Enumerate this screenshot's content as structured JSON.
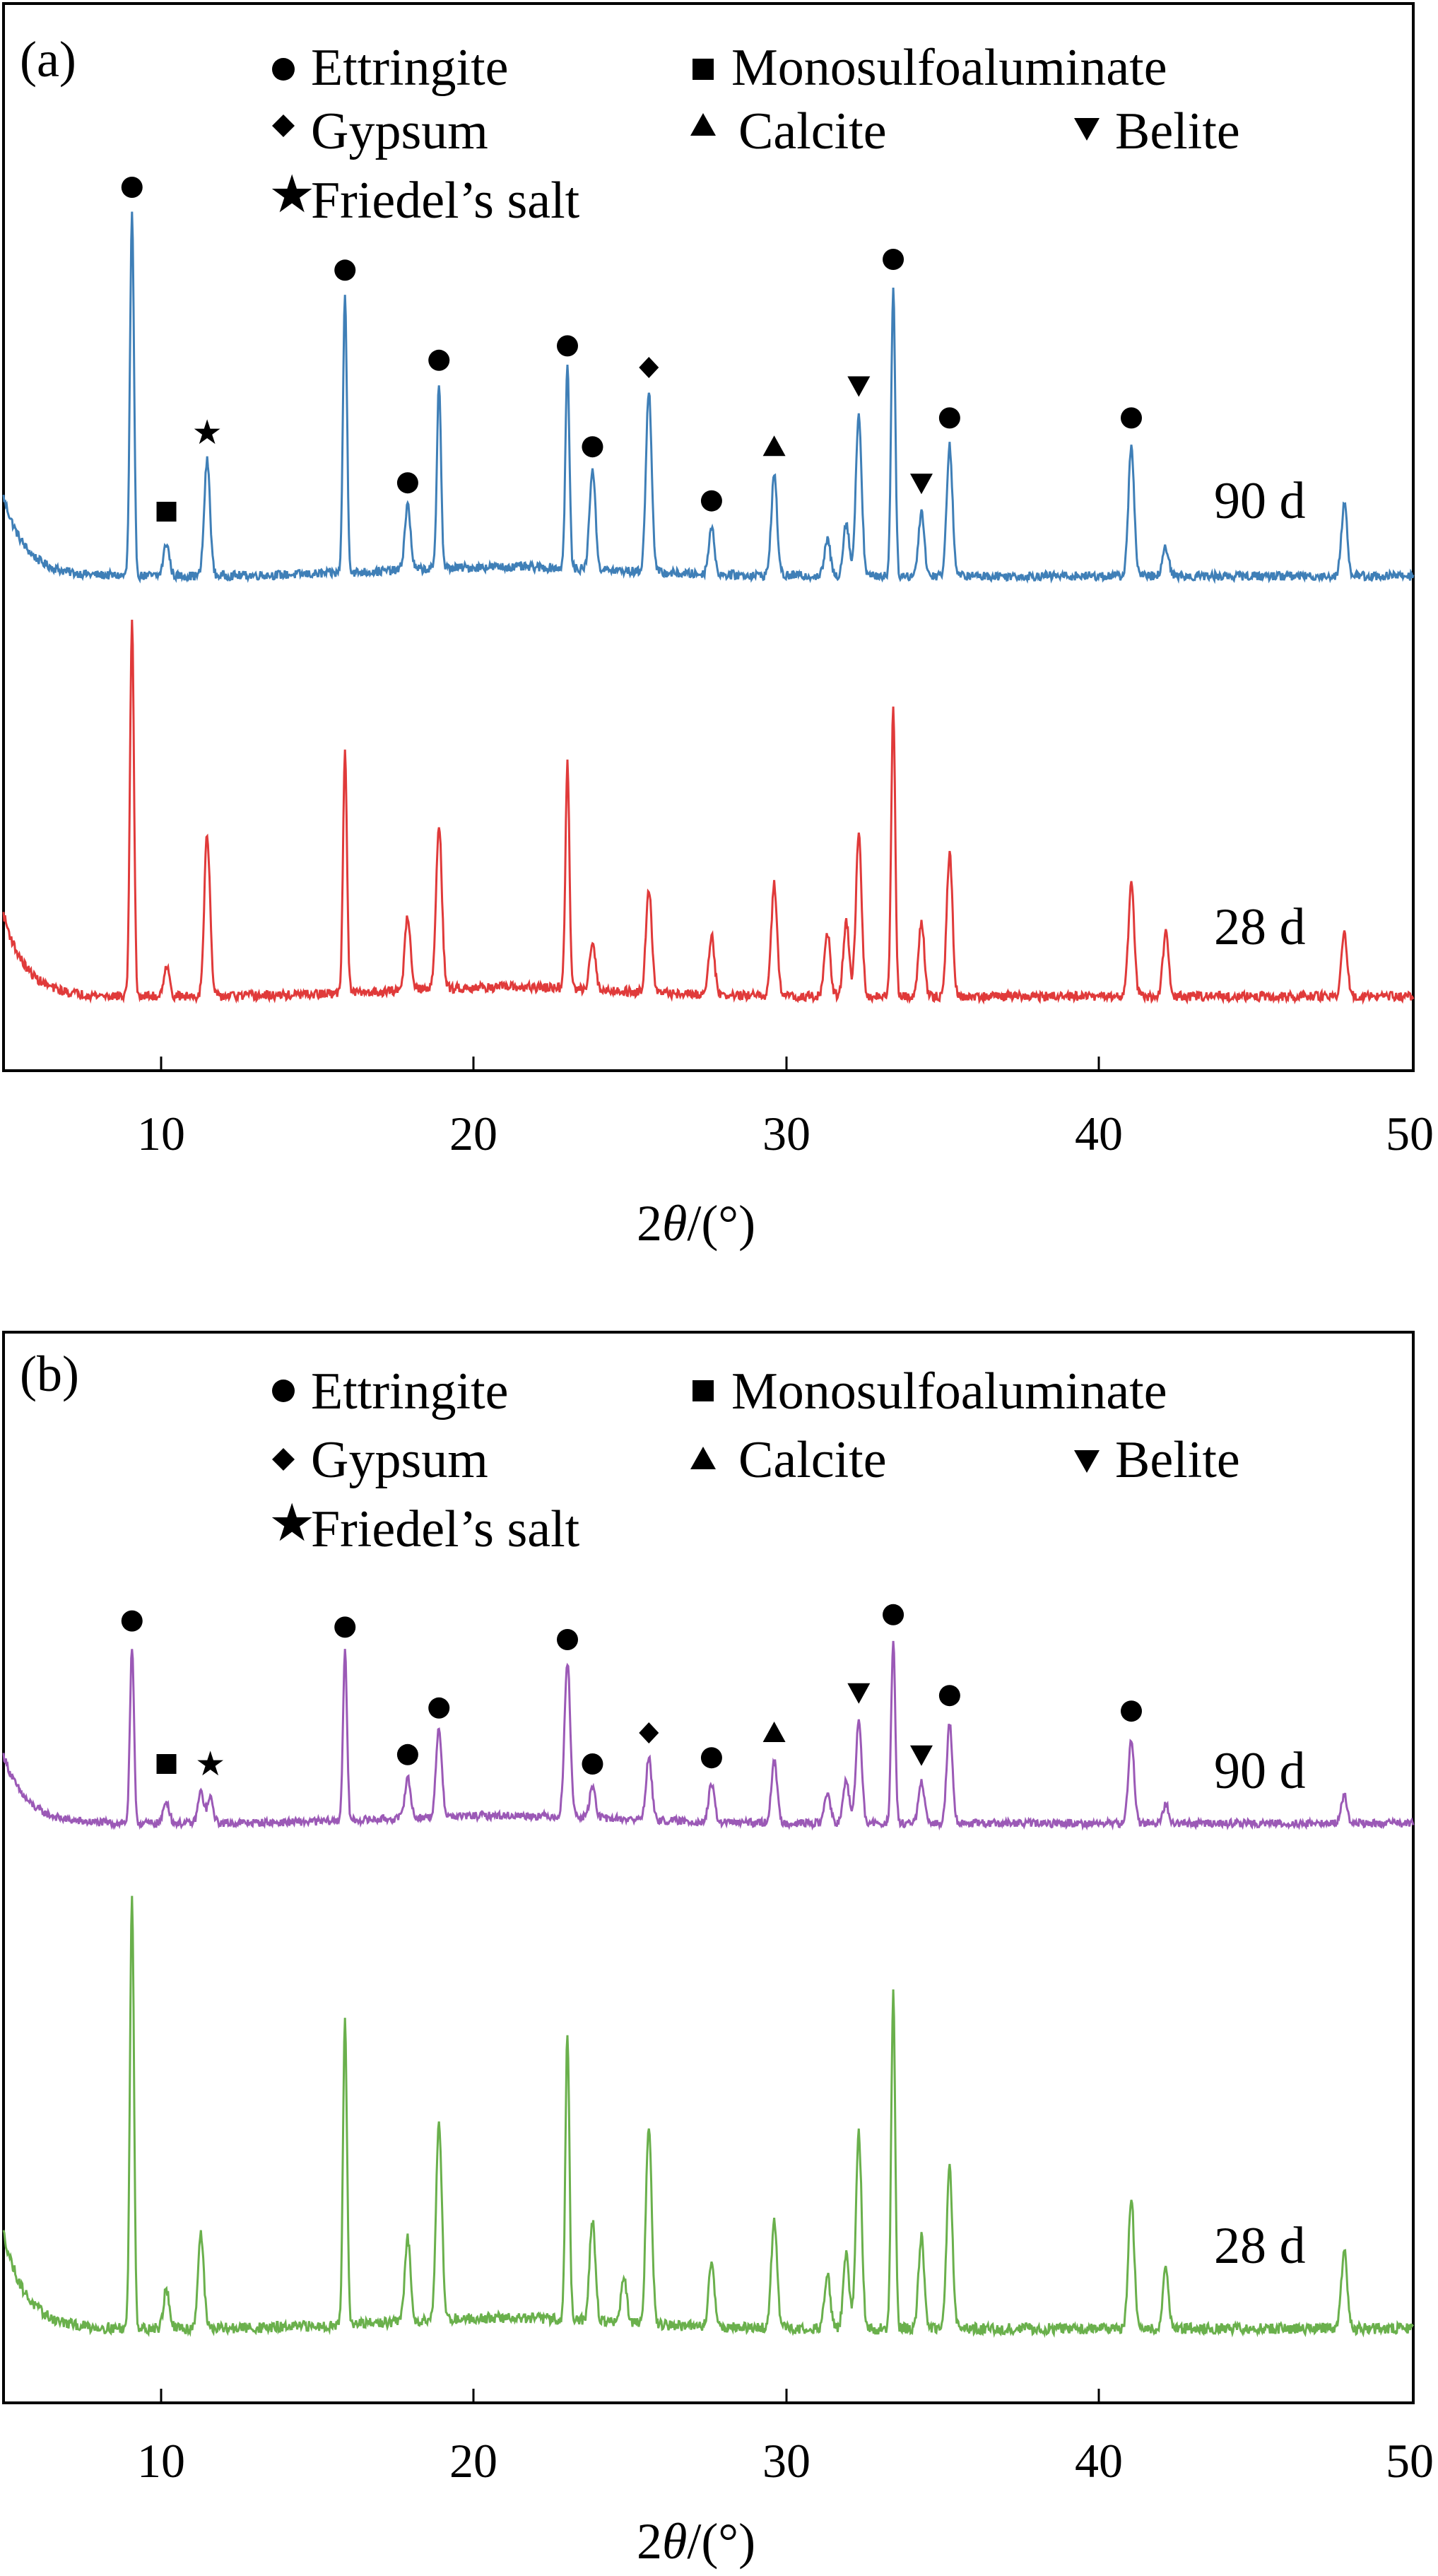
{
  "chart_data": [
    {
      "type": "line",
      "panel_label": "(a)",
      "xlabel_prefix": "2",
      "xlabel_theta": "θ",
      "xlabel_suffix": "/(°)",
      "ylabel": "",
      "xlim": [
        5,
        50
      ],
      "x_ticks": [
        "10",
        "20",
        "30",
        "40",
        "50"
      ],
      "legend": {
        "placement": "top",
        "entries": [
          {
            "symbol": "circle",
            "label": "Ettringite"
          },
          {
            "symbol": "square",
            "label": "Monosulfoaluminate"
          },
          {
            "symbol": "diamond",
            "label": "Gypsum"
          },
          {
            "symbol": "triangle-up",
            "label": "Calcite"
          },
          {
            "symbol": "triangle-down",
            "label": "Belite"
          },
          {
            "symbol": "star",
            "label": "Friedel’s salt"
          }
        ]
      },
      "series": [
        {
          "label": "90 d",
          "color": "#3f7fb7",
          "peaks": [
            [
              9.1,
              1.0
            ],
            [
              10.2,
              0.09
            ],
            [
              11.5,
              0.32
            ],
            [
              15.9,
              0.77
            ],
            [
              17.9,
              0.18
            ],
            [
              18.9,
              0.52
            ],
            [
              23.0,
              0.56
            ],
            [
              23.8,
              0.28
            ],
            [
              25.6,
              0.5
            ],
            [
              27.6,
              0.13
            ],
            [
              29.6,
              0.28
            ],
            [
              31.3,
              0.1
            ],
            [
              31.9,
              0.15
            ],
            [
              32.3,
              0.45
            ],
            [
              33.4,
              0.8
            ],
            [
              34.3,
              0.18
            ],
            [
              35.2,
              0.36
            ],
            [
              41.0,
              0.36
            ],
            [
              42.1,
              0.08
            ],
            [
              47.8,
              0.2
            ]
          ]
        },
        {
          "label": "28 d",
          "color": "#e03a3a",
          "peaks": [
            [
              9.1,
              1.0
            ],
            [
              10.2,
              0.08
            ],
            [
              11.5,
              0.43
            ],
            [
              15.9,
              0.64
            ],
            [
              17.9,
              0.2
            ],
            [
              18.9,
              0.44
            ],
            [
              23.0,
              0.6
            ],
            [
              23.8,
              0.13
            ],
            [
              25.6,
              0.28
            ],
            [
              27.6,
              0.16
            ],
            [
              29.6,
              0.3
            ],
            [
              31.3,
              0.17
            ],
            [
              31.9,
              0.2
            ],
            [
              32.3,
              0.43
            ],
            [
              33.4,
              0.77
            ],
            [
              34.3,
              0.2
            ],
            [
              35.2,
              0.38
            ],
            [
              41.0,
              0.3
            ],
            [
              42.1,
              0.17
            ],
            [
              47.8,
              0.17
            ]
          ]
        }
      ],
      "annotations": [
        {
          "symbol": "circle",
          "x": 9.1
        },
        {
          "symbol": "square",
          "x": 10.2
        },
        {
          "symbol": "star",
          "x": 11.5
        },
        {
          "symbol": "circle",
          "x": 15.9
        },
        {
          "symbol": "circle",
          "x": 17.9
        },
        {
          "symbol": "circle",
          "x": 18.9
        },
        {
          "symbol": "circle",
          "x": 23.0
        },
        {
          "symbol": "circle",
          "x": 23.8
        },
        {
          "symbol": "diamond",
          "x": 25.6
        },
        {
          "symbol": "circle",
          "x": 27.6
        },
        {
          "symbol": "triangle-up",
          "x": 29.6
        },
        {
          "symbol": "triangle-down",
          "x": 32.3
        },
        {
          "symbol": "circle",
          "x": 33.4
        },
        {
          "symbol": "triangle-down",
          "x": 34.3
        },
        {
          "symbol": "circle",
          "x": 35.2
        },
        {
          "symbol": "circle",
          "x": 41.0
        }
      ]
    },
    {
      "type": "line",
      "panel_label": "(b)",
      "xlabel_prefix": "2",
      "xlabel_theta": "θ",
      "xlabel_suffix": "/(°)",
      "ylabel": "",
      "xlim": [
        5,
        50
      ],
      "x_ticks": [
        "10",
        "20",
        "30",
        "40",
        "50"
      ],
      "legend": {
        "placement": "top",
        "entries": [
          {
            "symbol": "circle",
            "label": "Ettringite"
          },
          {
            "symbol": "square",
            "label": "Monosulfoaluminate"
          },
          {
            "symbol": "diamond",
            "label": "Gypsum"
          },
          {
            "symbol": "triangle-up",
            "label": "Calcite"
          },
          {
            "symbol": "triangle-down",
            "label": "Belite"
          },
          {
            "symbol": "star",
            "label": "Friedel’s salt"
          }
        ]
      },
      "series": [
        {
          "label": "90 d",
          "color": "#9b59b6",
          "peaks": [
            [
              9.1,
              0.56
            ],
            [
              10.2,
              0.07
            ],
            [
              11.3,
              0.1
            ],
            [
              11.6,
              0.08
            ],
            [
              15.9,
              0.54
            ],
            [
              17.9,
              0.13
            ],
            [
              18.9,
              0.28
            ],
            [
              23.0,
              0.5
            ],
            [
              23.8,
              0.1
            ],
            [
              25.6,
              0.2
            ],
            [
              27.6,
              0.12
            ],
            [
              29.6,
              0.2
            ],
            [
              31.3,
              0.1
            ],
            [
              31.9,
              0.14
            ],
            [
              32.3,
              0.33
            ],
            [
              33.4,
              0.58
            ],
            [
              34.3,
              0.13
            ],
            [
              35.2,
              0.32
            ],
            [
              41.0,
              0.27
            ],
            [
              42.1,
              0.06
            ],
            [
              47.8,
              0.09
            ]
          ]
        },
        {
          "label": "28 d",
          "color": "#6ab04c",
          "peaks": [
            [
              9.1,
              1.0
            ],
            [
              10.2,
              0.09
            ],
            [
              11.3,
              0.22
            ],
            [
              15.9,
              0.71
            ],
            [
              17.9,
              0.19
            ],
            [
              18.9,
              0.45
            ],
            [
              23.0,
              0.66
            ],
            [
              23.8,
              0.23
            ],
            [
              24.8,
              0.1
            ],
            [
              25.6,
              0.46
            ],
            [
              27.6,
              0.15
            ],
            [
              29.6,
              0.25
            ],
            [
              31.3,
              0.12
            ],
            [
              31.9,
              0.17
            ],
            [
              32.3,
              0.45
            ],
            [
              33.4,
              0.77
            ],
            [
              34.3,
              0.21
            ],
            [
              35.2,
              0.37
            ],
            [
              41.0,
              0.3
            ],
            [
              42.1,
              0.14
            ],
            [
              47.8,
              0.18
            ]
          ]
        }
      ],
      "annotations": [
        {
          "symbol": "circle",
          "x": 9.1
        },
        {
          "symbol": "square",
          "x": 10.2
        },
        {
          "symbol": "star",
          "x": 11.6
        },
        {
          "symbol": "circle",
          "x": 15.9
        },
        {
          "symbol": "circle",
          "x": 17.9
        },
        {
          "symbol": "circle",
          "x": 18.9
        },
        {
          "symbol": "circle",
          "x": 23.0
        },
        {
          "symbol": "circle",
          "x": 23.8
        },
        {
          "symbol": "diamond",
          "x": 25.6
        },
        {
          "symbol": "circle",
          "x": 27.6
        },
        {
          "symbol": "triangle-up",
          "x": 29.6
        },
        {
          "symbol": "triangle-down",
          "x": 32.3
        },
        {
          "symbol": "circle",
          "x": 33.4
        },
        {
          "symbol": "triangle-down",
          "x": 34.3
        },
        {
          "symbol": "circle",
          "x": 35.2
        },
        {
          "symbol": "circle",
          "x": 41.0
        }
      ]
    }
  ]
}
